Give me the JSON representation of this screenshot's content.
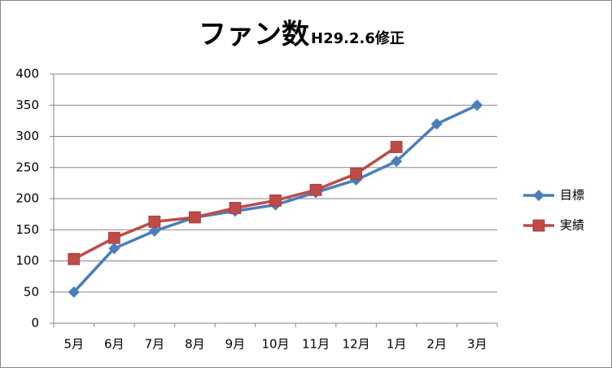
{
  "chart_data": {
    "type": "line",
    "title": "ファン数",
    "subtitle": "H29.2.6修正",
    "categories": [
      "5月",
      "6月",
      "7月",
      "8月",
      "9月",
      "10月",
      "11月",
      "12月",
      "1月",
      "2月",
      "3月"
    ],
    "series": [
      {
        "name": "目標",
        "color": "#4a7ebb",
        "marker": "diamond",
        "values": [
          50,
          120,
          148,
          170,
          180,
          190,
          210,
          230,
          260,
          320,
          350
        ]
      },
      {
        "name": "実績",
        "color": "#be4b48",
        "marker": "square",
        "values": [
          103,
          137,
          163,
          170,
          185,
          197,
          214,
          240,
          283,
          null,
          null
        ]
      }
    ],
    "ylim": [
      0,
      400
    ],
    "yticks": [
      0,
      50,
      100,
      150,
      200,
      250,
      300,
      350,
      400
    ],
    "grid": true,
    "legend": "right"
  }
}
